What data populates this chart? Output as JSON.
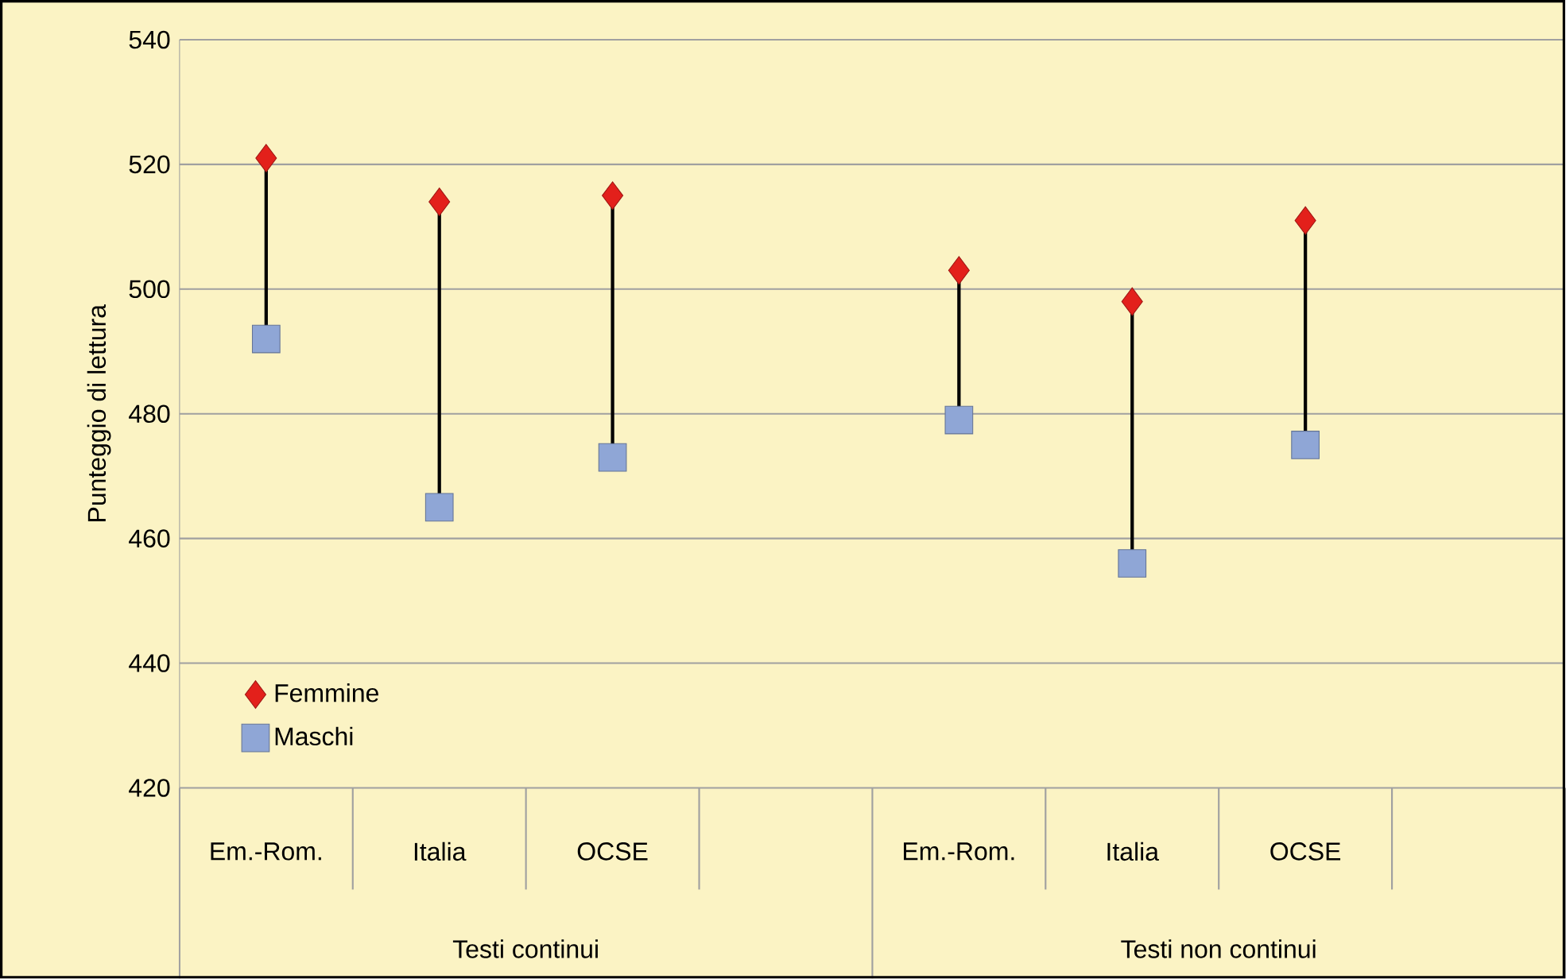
{
  "chart_data": {
    "type": "scatter",
    "ylabel": "Punteggio di lettura",
    "categories": [
      "Em.-Rom.",
      "Italia",
      "OCSE",
      null,
      "Em.-Rom.",
      "Italia",
      "OCSE",
      null
    ],
    "series": [
      {
        "name": "Femmine",
        "color": "#e3201b",
        "marker": "diamond",
        "values": [
          521,
          514,
          515,
          null,
          503,
          498,
          511,
          null
        ]
      },
      {
        "name": "Maschi",
        "color": "#8fa6d6",
        "marker": "square",
        "values": [
          492,
          465,
          473,
          null,
          479,
          456,
          475,
          null
        ]
      }
    ],
    "annotations": [
      "Testi continui",
      "Testi non continui"
    ],
    "ylim": [
      420,
      540
    ],
    "yticks": [
      420,
      440,
      460,
      480,
      500,
      520,
      540
    ],
    "grid": "y",
    "legend": "bottom left"
  }
}
